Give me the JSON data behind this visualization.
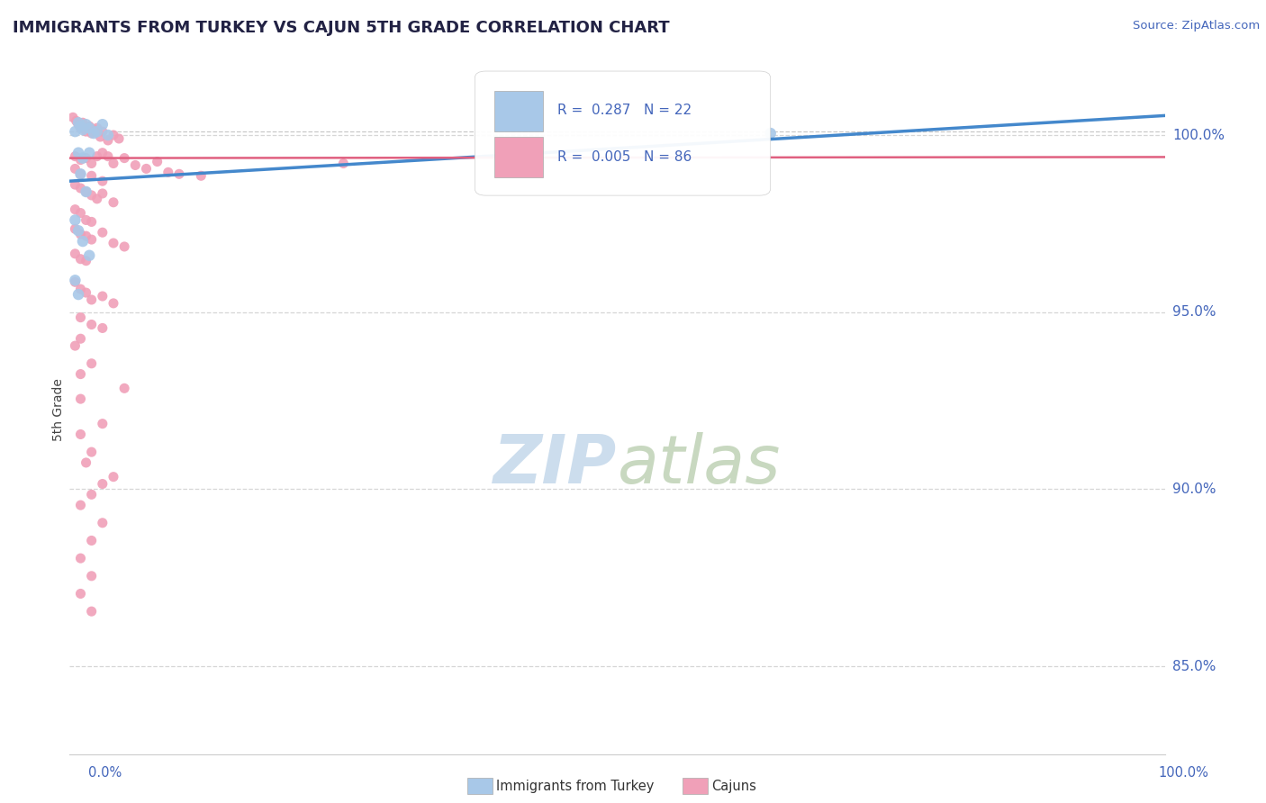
{
  "title": "IMMIGRANTS FROM TURKEY VS CAJUN 5TH GRADE CORRELATION CHART",
  "source_text": "Source: ZipAtlas.com",
  "ylabel": "5th Grade",
  "yticks": [
    100.0,
    95.0,
    90.0,
    85.0
  ],
  "ymin": 82.5,
  "ymax": 102.0,
  "xmin": 0.0,
  "xmax": 1.0,
  "blue_color": "#a8c8e8",
  "pink_color": "#f0a0b8",
  "trend_blue_color": "#4488cc",
  "trend_pink_color": "#e06080",
  "watermark_color": "#ccdded",
  "title_color": "#222244",
  "axis_color": "#4466bb",
  "blue_scatter": [
    [
      0.005,
      100.1
    ],
    [
      0.008,
      100.35
    ],
    [
      0.01,
      100.25
    ],
    [
      0.012,
      100.15
    ],
    [
      0.015,
      100.3
    ],
    [
      0.018,
      100.2
    ],
    [
      0.022,
      100.05
    ],
    [
      0.025,
      100.1
    ],
    [
      0.03,
      100.3
    ],
    [
      0.035,
      100.0
    ],
    [
      0.008,
      99.5
    ],
    [
      0.012,
      99.35
    ],
    [
      0.018,
      99.5
    ],
    [
      0.01,
      98.9
    ],
    [
      0.015,
      98.4
    ],
    [
      0.005,
      97.6
    ],
    [
      0.008,
      97.3
    ],
    [
      0.012,
      97.0
    ],
    [
      0.018,
      96.6
    ],
    [
      0.005,
      95.9
    ],
    [
      0.008,
      95.5
    ],
    [
      0.64,
      100.05
    ]
  ],
  "pink_scatter": [
    [
      0.003,
      100.5
    ],
    [
      0.006,
      100.4
    ],
    [
      0.008,
      100.3
    ],
    [
      0.01,
      100.2
    ],
    [
      0.012,
      100.35
    ],
    [
      0.015,
      100.1
    ],
    [
      0.018,
      100.25
    ],
    [
      0.02,
      100.05
    ],
    [
      0.022,
      100.15
    ],
    [
      0.025,
      100.2
    ],
    [
      0.028,
      99.95
    ],
    [
      0.03,
      100.1
    ],
    [
      0.035,
      99.85
    ],
    [
      0.04,
      100.0
    ],
    [
      0.045,
      99.9
    ],
    [
      0.05,
      99.35
    ],
    [
      0.06,
      99.15
    ],
    [
      0.07,
      99.05
    ],
    [
      0.08,
      99.25
    ],
    [
      0.09,
      98.95
    ],
    [
      0.1,
      98.9
    ],
    [
      0.12,
      98.85
    ],
    [
      0.005,
      99.4
    ],
    [
      0.01,
      99.3
    ],
    [
      0.015,
      99.35
    ],
    [
      0.02,
      99.2
    ],
    [
      0.025,
      99.4
    ],
    [
      0.03,
      99.5
    ],
    [
      0.035,
      99.4
    ],
    [
      0.04,
      99.2
    ],
    [
      0.005,
      99.05
    ],
    [
      0.01,
      98.9
    ],
    [
      0.02,
      98.85
    ],
    [
      0.03,
      98.7
    ],
    [
      0.005,
      98.6
    ],
    [
      0.01,
      98.5
    ],
    [
      0.015,
      98.4
    ],
    [
      0.02,
      98.3
    ],
    [
      0.025,
      98.2
    ],
    [
      0.03,
      98.35
    ],
    [
      0.04,
      98.1
    ],
    [
      0.005,
      97.9
    ],
    [
      0.01,
      97.8
    ],
    [
      0.015,
      97.6
    ],
    [
      0.02,
      97.55
    ],
    [
      0.005,
      97.35
    ],
    [
      0.01,
      97.2
    ],
    [
      0.015,
      97.15
    ],
    [
      0.02,
      97.05
    ],
    [
      0.03,
      97.25
    ],
    [
      0.04,
      96.95
    ],
    [
      0.05,
      96.85
    ],
    [
      0.005,
      96.65
    ],
    [
      0.01,
      96.5
    ],
    [
      0.015,
      96.45
    ],
    [
      0.25,
      99.2
    ],
    [
      0.005,
      95.85
    ],
    [
      0.01,
      95.65
    ],
    [
      0.015,
      95.55
    ],
    [
      0.02,
      95.35
    ],
    [
      0.03,
      95.45
    ],
    [
      0.04,
      95.25
    ],
    [
      0.01,
      94.85
    ],
    [
      0.02,
      94.65
    ],
    [
      0.03,
      94.55
    ],
    [
      0.01,
      94.25
    ],
    [
      0.005,
      94.05
    ],
    [
      0.02,
      93.55
    ],
    [
      0.01,
      93.25
    ],
    [
      0.05,
      92.85
    ],
    [
      0.01,
      92.55
    ],
    [
      0.03,
      91.85
    ],
    [
      0.01,
      91.55
    ],
    [
      0.02,
      91.05
    ],
    [
      0.015,
      90.75
    ],
    [
      0.04,
      90.35
    ],
    [
      0.03,
      90.15
    ],
    [
      0.02,
      89.85
    ],
    [
      0.01,
      89.55
    ],
    [
      0.03,
      89.05
    ],
    [
      0.02,
      88.55
    ],
    [
      0.01,
      88.05
    ],
    [
      0.02,
      87.55
    ],
    [
      0.01,
      87.05
    ],
    [
      0.02,
      86.55
    ]
  ],
  "blue_trend_x": [
    0.0,
    1.0
  ],
  "blue_trend_y": [
    98.7,
    100.55
  ],
  "pink_trend_x": [
    0.0,
    1.0
  ],
  "pink_trend_y": [
    99.35,
    99.38
  ],
  "dashed_line_y": 100.1,
  "marker_size_blue": 9,
  "marker_size_pink": 8,
  "figsize": [
    14.06,
    8.92
  ],
  "dpi": 100
}
